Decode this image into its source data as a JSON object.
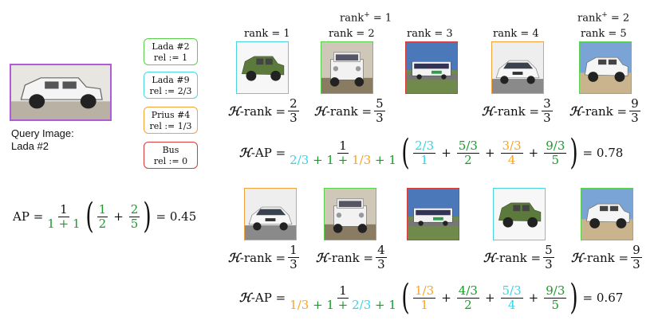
{
  "query": {
    "line1": "Query Image:",
    "line2": "Lada #2"
  },
  "legend": [
    {
      "name": "Lada #2",
      "rel": "rel := 1",
      "color": "#5ad14b"
    },
    {
      "name": "Lada #9",
      "rel": "rel := 2/3",
      "color": "#49d6e4"
    },
    {
      "name": "Prius #4",
      "rel": "rel := 1/3",
      "color": "#f2a238"
    },
    {
      "name": "Bus",
      "rel": "rel := 0",
      "color": "#d93a3a"
    }
  ],
  "top_row": {
    "ranks": [
      "rank  = 1",
      "rank  = 2",
      "rank  = 3",
      "rank  = 4",
      "rank  = 5"
    ],
    "rank_plus": [
      {
        "label": "rank",
        "sup": "+",
        "value": " = 1"
      },
      {
        "label": "rank",
        "sup": "+",
        "value": " = 2"
      }
    ],
    "hrank_prefix": "-rank = ",
    "hrank_h": "ℋ",
    "hranks": [
      {
        "num": "2",
        "den": "3"
      },
      {
        "num": "5",
        "den": "3"
      },
      {
        "num": "3",
        "den": "3"
      },
      {
        "num": "9",
        "den": "3"
      }
    ],
    "hap": {
      "label": "-AP = ",
      "numerator": "1",
      "den_terms": [
        "2/3",
        "+ 1 +",
        "1/3",
        "+ 1"
      ],
      "terms": [
        {
          "num": "2/3",
          "den": "1"
        },
        {
          "num": "5/3",
          "den": "2"
        },
        {
          "num": "3/3",
          "den": "4"
        },
        {
          "num": "9/3",
          "den": "5"
        }
      ],
      "plus": "+",
      "result": "= 0.78"
    }
  },
  "bottom_row": {
    "hranks": [
      {
        "num": "1",
        "den": "3"
      },
      {
        "num": "4",
        "den": "3"
      },
      {
        "num": "5",
        "den": "3"
      },
      {
        "num": "9",
        "den": "3"
      }
    ],
    "hap": {
      "label": "-AP = ",
      "numerator": "1",
      "den_terms": [
        "1/3",
        "+ 1 +",
        "2/3",
        "+ 1"
      ],
      "terms": [
        {
          "num": "1/3",
          "den": "1"
        },
        {
          "num": "4/3",
          "den": "2"
        },
        {
          "num": "5/3",
          "den": "4"
        },
        {
          "num": "9/3",
          "den": "5"
        }
      ],
      "plus": "+",
      "result": "= 0.67"
    }
  },
  "ap": {
    "label": "AP = ",
    "numerator": "1",
    "den_terms": [
      "1",
      "+",
      "1"
    ],
    "terms": [
      {
        "num": "1",
        "den": "2"
      },
      {
        "num": "2",
        "den": "5"
      }
    ],
    "plus": "+",
    "result": "= 0.45"
  },
  "colors": {
    "green": "#1a9a2a",
    "cyan": "#33d6e8",
    "orange": "#f5a623",
    "red": "#d93a3a",
    "purple": "#b15bd6"
  }
}
